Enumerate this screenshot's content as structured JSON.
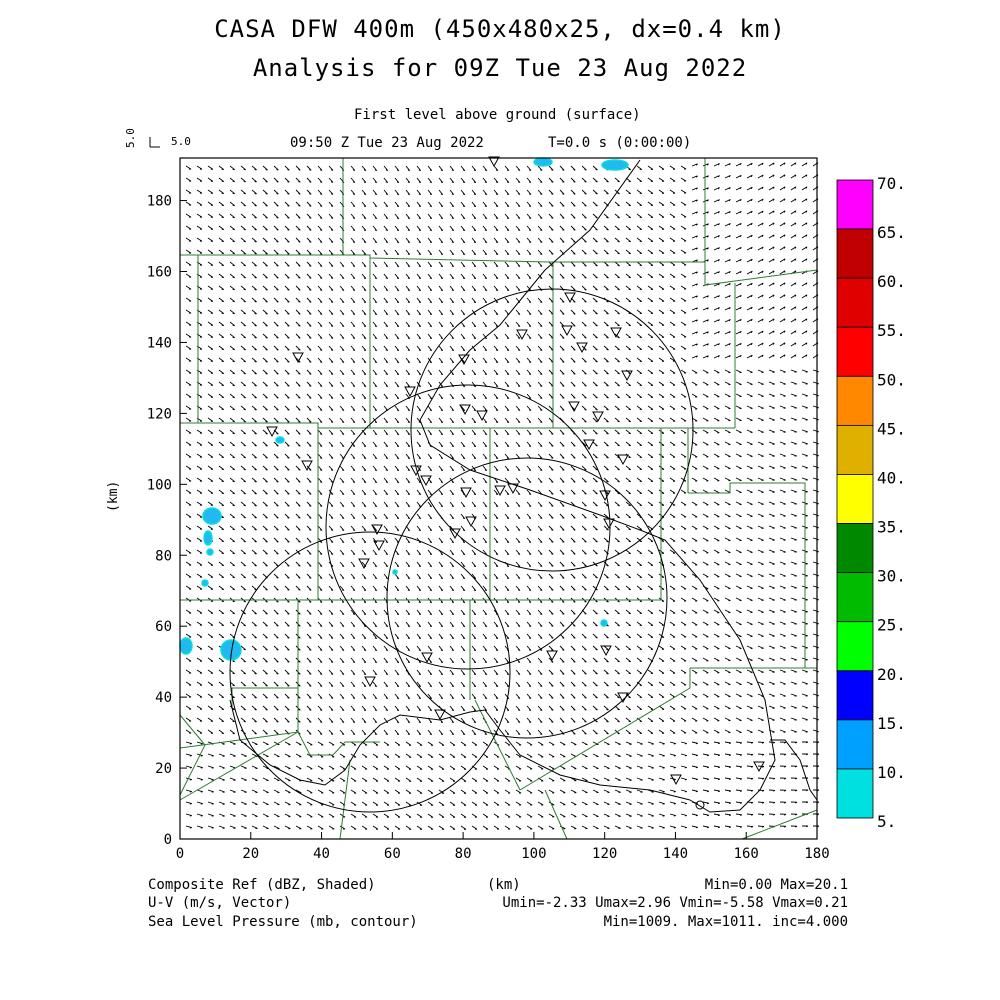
{
  "header": {
    "title_line1": "CASA DFW 400m (450x480x25, dx=0.4 km)",
    "title_line2": "Analysis for 09Z Tue 23 Aug 2022",
    "level": "First level above ground (surface)",
    "valid_time": "09:50 Z Tue 23 Aug 2022",
    "integration_time": "T=0.0 s (0:00:00)",
    "vector_ref_left": "5.0",
    "vector_ref_right": "5.0"
  },
  "axes": {
    "x_label": "(km)",
    "y_label": "(km)",
    "x_ticks": [
      "0",
      "20",
      "40",
      "60",
      "80",
      "100",
      "120",
      "140",
      "160",
      "180"
    ],
    "y_ticks": [
      "0",
      "20",
      "40",
      "60",
      "80",
      "100",
      "120",
      "140",
      "160",
      "180"
    ]
  },
  "colorbar": {
    "labels": [
      "70.",
      "65.",
      "60.",
      "55.",
      "50.",
      "45.",
      "40.",
      "35.",
      "30.",
      "25.",
      "20.",
      "15.",
      "10.",
      "5."
    ],
    "colors": [
      "#ff00ff",
      "#c00000",
      "#e00000",
      "#ff0000",
      "#ff8800",
      "#e0b000",
      "#ffff00",
      "#008800",
      "#00bb00",
      "#00ff00",
      "#0000ff",
      "#00a0ff",
      "#00e0e0"
    ]
  },
  "footer": {
    "field1": "Composite Ref (dBZ, Shaded)",
    "field2": "U-V (m/s, Vector)",
    "field3": "Sea Level Pressure (mb, contour)",
    "x_unit": "(km)",
    "stats1": "Min=0.00 Max=20.1",
    "stats2": "Umin=-2.33 Umax=2.96 Vmin=-5.58 Vmax=0.21",
    "stats3": "Min=1009. Max=1011. inc=4.000"
  }
}
